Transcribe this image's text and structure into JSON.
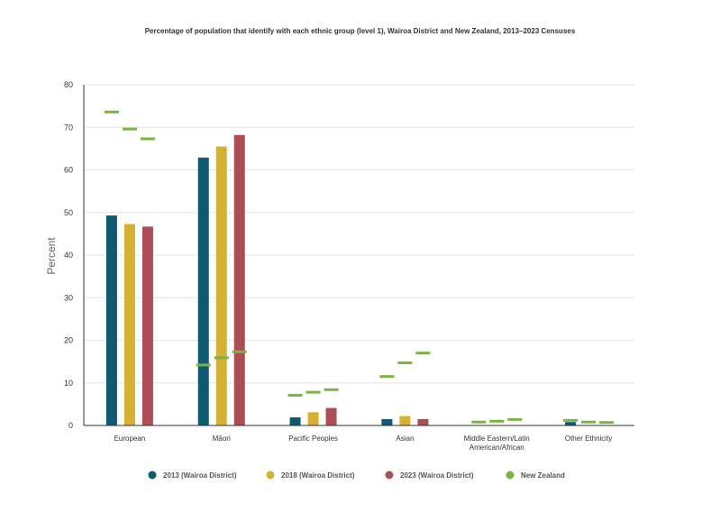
{
  "chart_data": {
    "type": "bar",
    "title": "Percentage of population that identify with each ethnic group (level 1), Wairoa District and New Zealand, 2013–2023 Censuses",
    "xlabel": "",
    "ylabel": "Percent",
    "ylim": [
      0,
      80
    ],
    "yticks": [
      0,
      10,
      20,
      30,
      40,
      50,
      60,
      70,
      80
    ],
    "grid": true,
    "legend_position": "bottom",
    "categories": [
      [
        "European"
      ],
      [
        "Māori"
      ],
      [
        "Pacific Peoples"
      ],
      [
        "Asian"
      ],
      [
        "Middle Eastern/Latin",
        "American/African"
      ],
      [
        "Other Ethnicity"
      ]
    ],
    "series": [
      {
        "name": "2013 (Wairoa District)",
        "color": "#0e5a73",
        "values": [
          49.3,
          62.9,
          1.9,
          1.5,
          0.0,
          0.8
        ]
      },
      {
        "name": "2018 (Wairoa District)",
        "color": "#d4b132",
        "values": [
          47.3,
          65.5,
          3.1,
          2.2,
          0.0,
          0.0
        ]
      },
      {
        "name": "2023 (Wairoa District)",
        "color": "#ad4e57",
        "values": [
          46.7,
          68.2,
          4.1,
          1.5,
          0.0,
          0.0
        ]
      }
    ],
    "reference_series": {
      "name": "New Zealand",
      "color": "#7ab541",
      "values": [
        [
          73.6,
          69.6,
          67.3
        ],
        [
          14.2,
          15.9,
          17.3
        ],
        [
          7.1,
          7.8,
          8.4
        ],
        [
          11.5,
          14.7,
          17.0
        ],
        [
          0.8,
          1.0,
          1.4
        ],
        [
          1.2,
          0.8,
          0.7
        ]
      ]
    }
  }
}
